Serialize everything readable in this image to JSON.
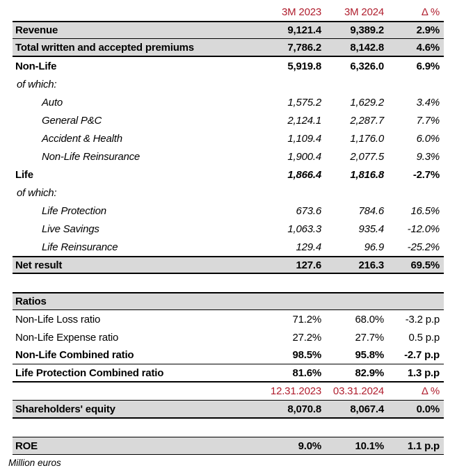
{
  "meta": {
    "description": "Quarterly financial results table, million euros",
    "colors": {
      "header_red": "#B01E2E",
      "row_shade_gray": "#D9D9D9",
      "rule_black": "#000000",
      "background": "#FFFFFF"
    }
  },
  "footnote": {
    "text": "Million euros"
  },
  "rows": [
    {
      "name": "header-periods",
      "classes": "colhead",
      "cells": [
        {
          "t": ""
        },
        {
          "t": "3M 2023"
        },
        {
          "t": "3M 2024"
        },
        {
          "t": "Δ %"
        }
      ]
    },
    {
      "name": "row-revenue",
      "classes": "shaded strong rt2 rb1",
      "cells": [
        {
          "t": "Revenue"
        },
        {
          "t": "9,121.4"
        },
        {
          "t": "9,389.2"
        },
        {
          "t": "2.9%"
        }
      ]
    },
    {
      "name": "row-total-premiums",
      "classes": "shaded strong rb2",
      "cells": [
        {
          "t": "Total written and accepted premiums"
        },
        {
          "t": "7,786.2"
        },
        {
          "t": "8,142.8"
        },
        {
          "t": "4.6%"
        }
      ]
    },
    {
      "name": "row-non-life",
      "classes": "strong",
      "cells": [
        {
          "t": "Non-Life"
        },
        {
          "t": "5,919.8"
        },
        {
          "t": "6,326.0"
        },
        {
          "t": "6.9%"
        }
      ]
    },
    {
      "name": "row-of-which-non-life",
      "classes": "italic ofwhich",
      "cells": [
        {
          "t": "of which:"
        },
        {
          "t": ""
        },
        {
          "t": ""
        },
        {
          "t": ""
        }
      ]
    },
    {
      "name": "row-auto",
      "classes": "italic indent",
      "cells": [
        {
          "t": "Auto"
        },
        {
          "t": "1,575.2"
        },
        {
          "t": "1,629.2"
        },
        {
          "t": "3.4%"
        }
      ]
    },
    {
      "name": "row-general-pc",
      "classes": "italic indent",
      "cells": [
        {
          "t": "General P&C"
        },
        {
          "t": "2,124.1"
        },
        {
          "t": "2,287.7"
        },
        {
          "t": "7.7%"
        }
      ]
    },
    {
      "name": "row-accident-health",
      "classes": "italic indent",
      "cells": [
        {
          "t": "Accident & Health"
        },
        {
          "t": "1,109.4"
        },
        {
          "t": "1,176.0"
        },
        {
          "t": "6.0%"
        }
      ]
    },
    {
      "name": "row-non-life-reinsurance",
      "classes": "italic indent",
      "cells": [
        {
          "t": "Non-Life Reinsurance"
        },
        {
          "t": "1,900.4"
        },
        {
          "t": "2,077.5"
        },
        {
          "t": "9.3%"
        }
      ]
    },
    {
      "name": "row-life",
      "classes": "strong",
      "cells": [
        {
          "t": "Life"
        },
        {
          "t": "1,866.4",
          "c": "italic-cell"
        },
        {
          "t": "1,816.8",
          "c": "italic-cell"
        },
        {
          "t": "-2.7%"
        }
      ]
    },
    {
      "name": "row-of-which-life",
      "classes": "italic ofwhich",
      "cells": [
        {
          "t": "of which:"
        },
        {
          "t": ""
        },
        {
          "t": ""
        },
        {
          "t": ""
        }
      ]
    },
    {
      "name": "row-life-protection",
      "classes": "italic indent",
      "cells": [
        {
          "t": "Life Protection"
        },
        {
          "t": "673.6"
        },
        {
          "t": "784.6"
        },
        {
          "t": "16.5%"
        }
      ]
    },
    {
      "name": "row-live-savings",
      "classes": "italic indent",
      "cells": [
        {
          "t": "Live Savings"
        },
        {
          "t": "1,063.3"
        },
        {
          "t": "935.4"
        },
        {
          "t": "-12.0%"
        }
      ]
    },
    {
      "name": "row-life-reinsurance",
      "classes": "italic indent",
      "cells": [
        {
          "t": "Life Reinsurance"
        },
        {
          "t": "129.4"
        },
        {
          "t": "96.9"
        },
        {
          "t": "-25.2%"
        }
      ]
    },
    {
      "name": "row-net-result",
      "classes": "shaded strong rt3 rb2",
      "cells": [
        {
          "t": "Net result"
        },
        {
          "t": "127.6"
        },
        {
          "t": "216.3"
        },
        {
          "t": "69.5%"
        }
      ]
    },
    {
      "name": "spacer-1",
      "kind": "spacer",
      "cells": []
    },
    {
      "name": "row-ratios-header",
      "classes": "shaded strong rt3 rb1",
      "cells": [
        {
          "t": "Ratios"
        },
        {
          "t": ""
        },
        {
          "t": ""
        },
        {
          "t": ""
        }
      ]
    },
    {
      "name": "row-non-life-loss-ratio",
      "classes": "",
      "cells": [
        {
          "t": "Non-Life Loss ratio"
        },
        {
          "t": "71.2%"
        },
        {
          "t": "68.0%"
        },
        {
          "t": "-3.2 p.p"
        }
      ]
    },
    {
      "name": "row-non-life-expense-ratio",
      "classes": "",
      "cells": [
        {
          "t": "Non-Life Expense ratio"
        },
        {
          "t": "27.2%"
        },
        {
          "t": "27.7%"
        },
        {
          "t": "0.5 p.p"
        }
      ]
    },
    {
      "name": "row-non-life-combined-ratio",
      "classes": "strong rb1",
      "cells": [
        {
          "t": "Non-Life Combined ratio"
        },
        {
          "t": "98.5%"
        },
        {
          "t": "95.8%"
        },
        {
          "t": "-2.7 p.p"
        }
      ]
    },
    {
      "name": "row-life-protection-combined-ratio",
      "classes": "strong rb2",
      "cells": [
        {
          "t": "Life Protection Combined ratio"
        },
        {
          "t": "81.6%"
        },
        {
          "t": "82.9%"
        },
        {
          "t": "1.3 p.p"
        }
      ]
    },
    {
      "name": "header-dates",
      "classes": "colhead rb1",
      "cells": [
        {
          "t": ""
        },
        {
          "t": "12.31.2023"
        },
        {
          "t": "03.31.2024"
        },
        {
          "t": "Δ %"
        }
      ]
    },
    {
      "name": "row-shareholders-equity",
      "classes": "shaded strong rb3",
      "cells": [
        {
          "t": "Shareholders' equity"
        },
        {
          "t": "8,070.8"
        },
        {
          "t": "8,067.4"
        },
        {
          "t": "0.0%"
        }
      ]
    },
    {
      "name": "spacer-2",
      "kind": "spacer",
      "cells": []
    },
    {
      "name": "row-roe",
      "classes": "shaded strong rt1 rb1",
      "cells": [
        {
          "t": "ROE"
        },
        {
          "t": "9.0%"
        },
        {
          "t": "10.1%"
        },
        {
          "t": "1.1 p.p"
        }
      ]
    }
  ]
}
